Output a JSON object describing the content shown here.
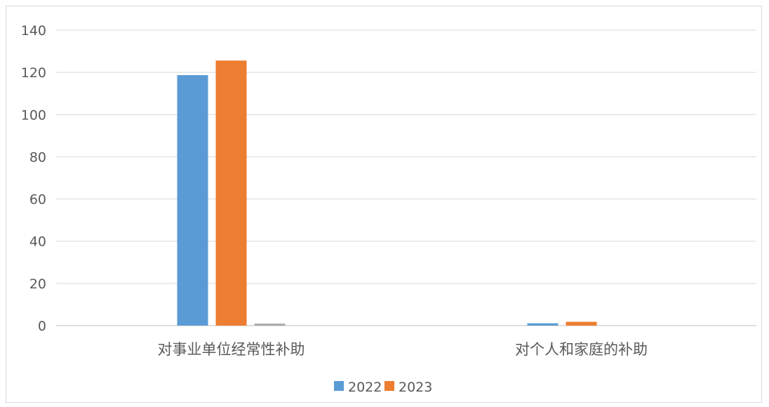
{
  "chart_data": {
    "type": "bar",
    "title": "",
    "xlabel": "",
    "ylabel": "",
    "categories": [
      "对事业单位经常性补助",
      "对个人和家庭的补助"
    ],
    "series": [
      {
        "name": "2022",
        "color": "#5b9bd5",
        "values": [
          118.7,
          1.1
        ]
      },
      {
        "name": "2023",
        "color": "#ed7d31",
        "values": [
          125.6,
          1.8
        ]
      },
      {
        "color": "#a5a5a5",
        "values": [
          0.9,
          0
        ]
      }
    ],
    "ylim": [
      0,
      140
    ],
    "yticks": [
      0,
      20,
      40,
      60,
      80,
      100,
      120,
      140
    ],
    "grid": true,
    "legend_position": "bottom"
  }
}
